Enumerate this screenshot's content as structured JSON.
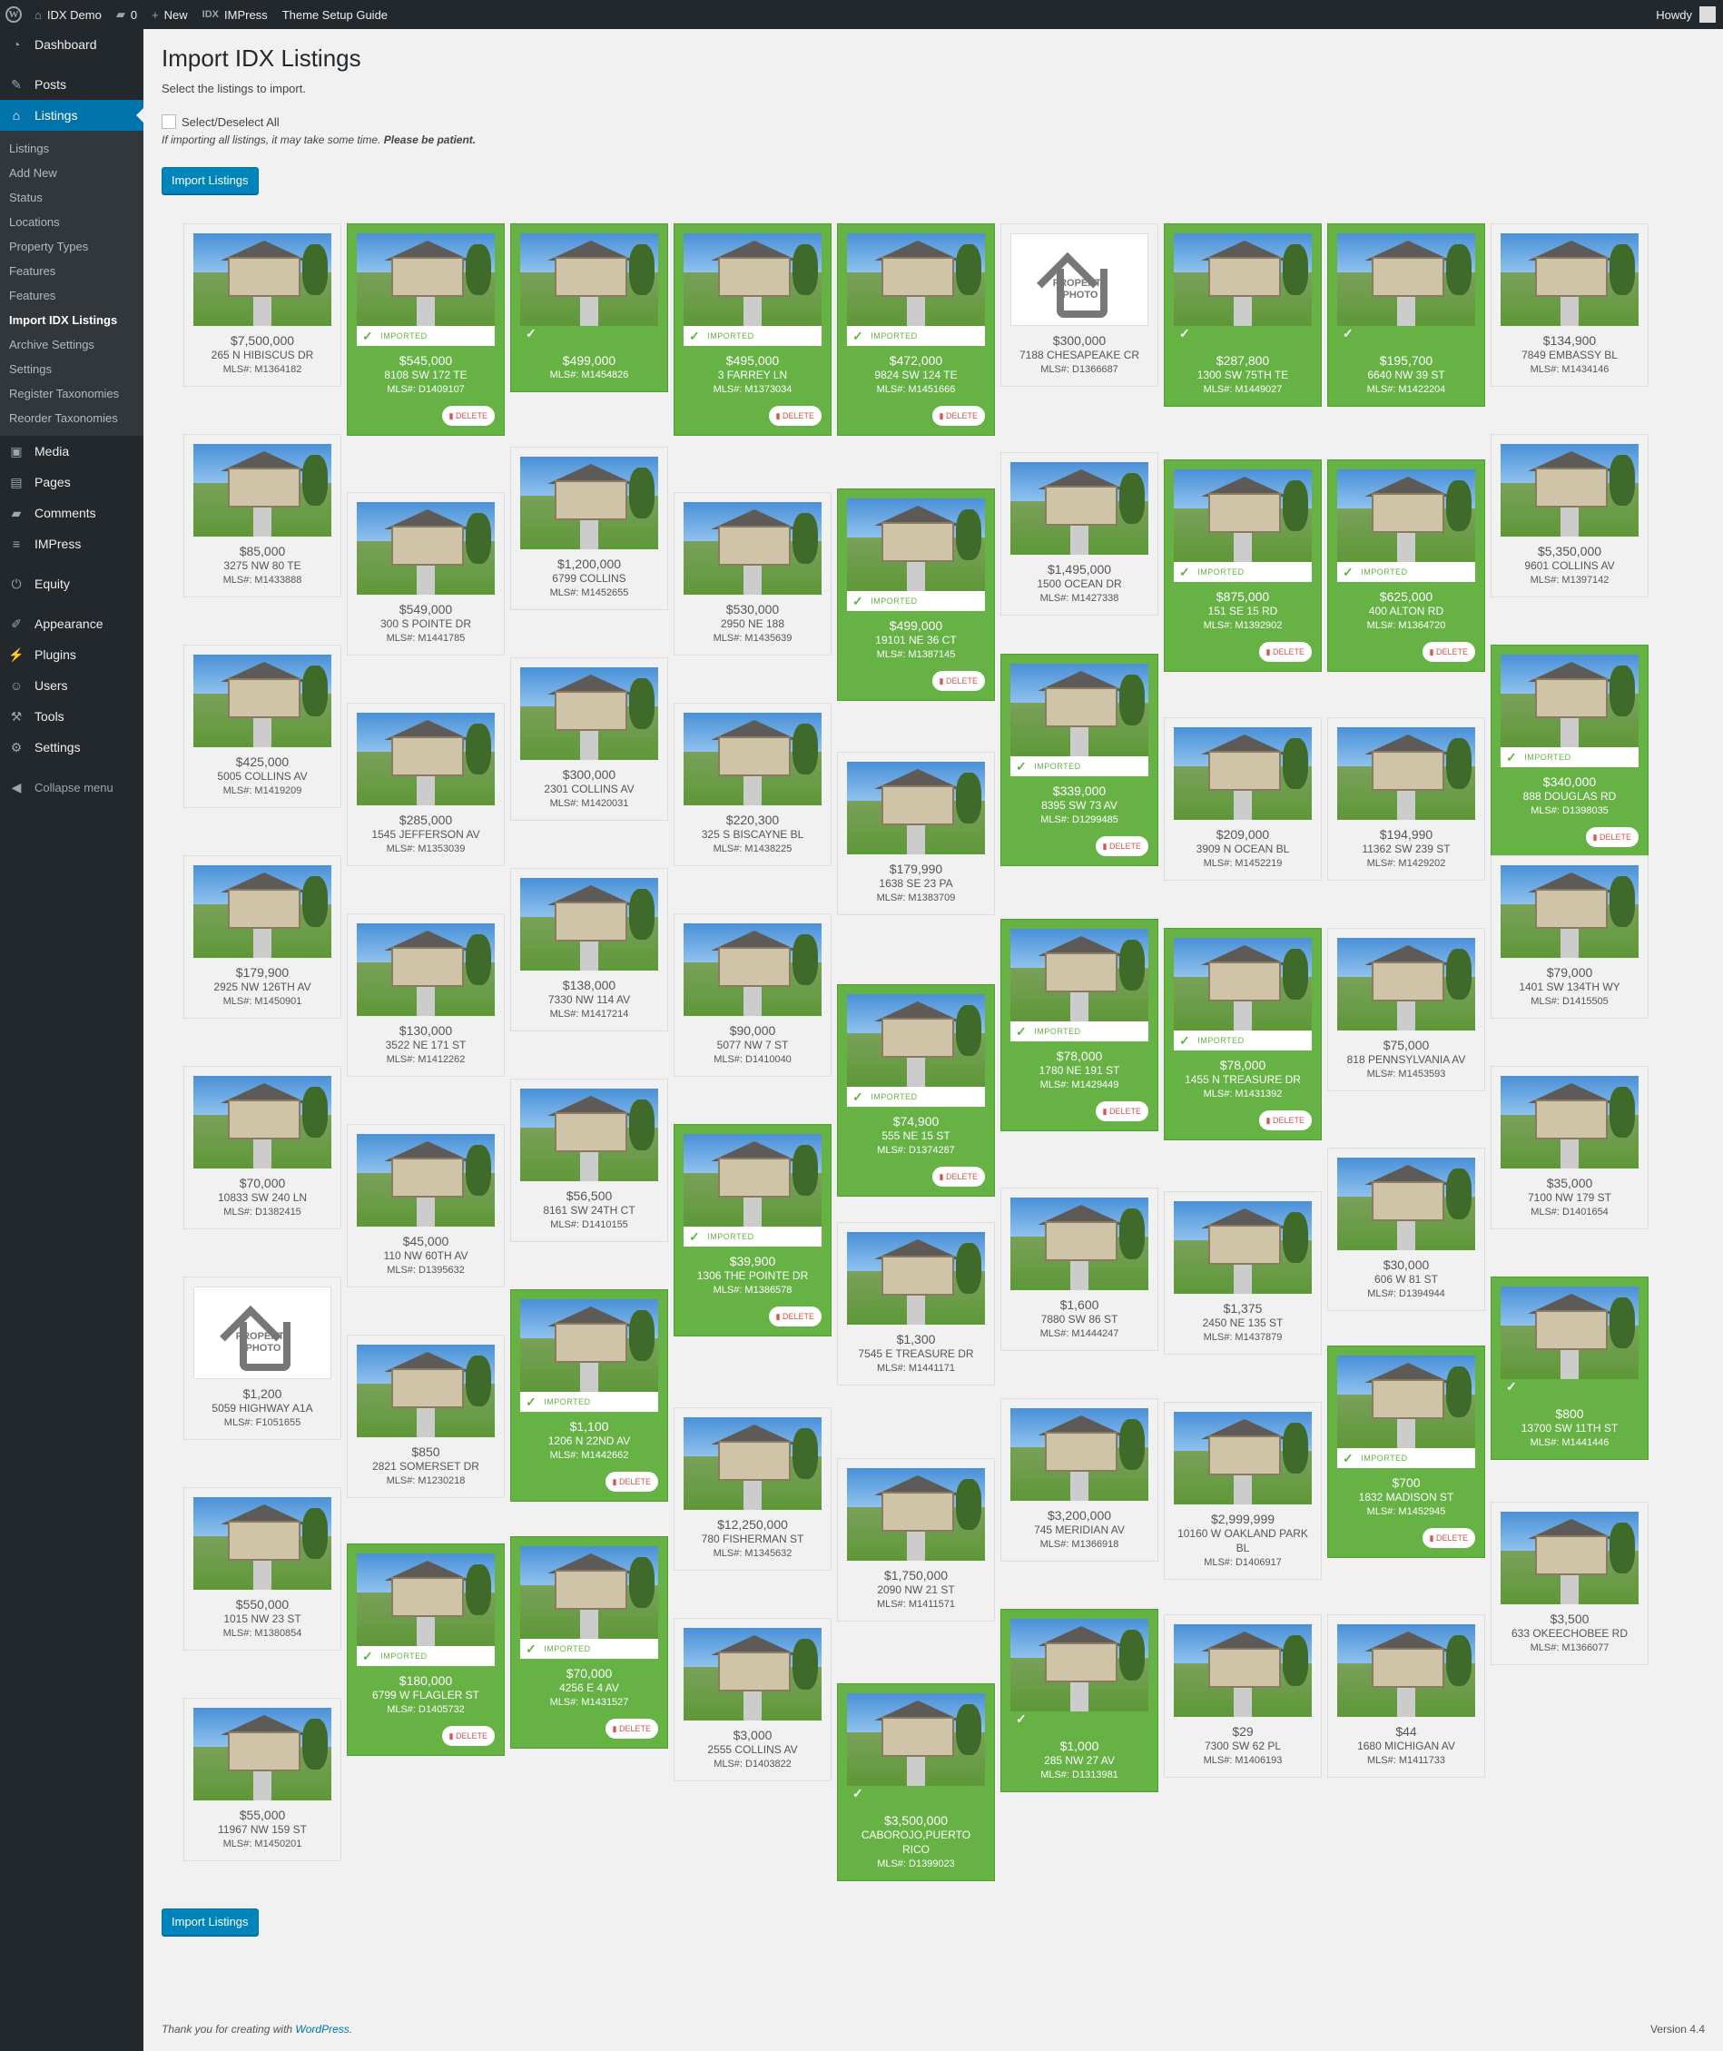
{
  "adminbar": {
    "site_name": "IDX Demo",
    "comments_count": "0",
    "new_label": "New",
    "impress_label": "IMPress",
    "guide_label": "Theme Setup Guide",
    "howdy": "Howdy"
  },
  "sidebar": {
    "items": [
      {
        "label": "Dashboard",
        "icon": "dashboard-icon"
      },
      {
        "label": "Posts",
        "icon": "pin-icon"
      },
      {
        "label": "Listings",
        "icon": "home-icon"
      },
      {
        "label": "Media",
        "icon": "media-icon"
      },
      {
        "label": "Pages",
        "icon": "page-icon"
      },
      {
        "label": "Comments",
        "icon": "comment-icon"
      },
      {
        "label": "IMPress",
        "icon": "idx-icon"
      },
      {
        "label": "Equity",
        "icon": "power-icon"
      },
      {
        "label": "Appearance",
        "icon": "brush-icon"
      },
      {
        "label": "Plugins",
        "icon": "plug-icon"
      },
      {
        "label": "Users",
        "icon": "user-icon"
      },
      {
        "label": "Tools",
        "icon": "wrench-icon"
      },
      {
        "label": "Settings",
        "icon": "settings-icon"
      },
      {
        "label": "Collapse menu",
        "icon": "collapse-icon"
      }
    ],
    "submenu": [
      "Listings",
      "Add New",
      "Status",
      "Locations",
      "Property Types",
      "Features",
      "Features",
      "Import IDX Listings",
      "Archive Settings",
      "Settings",
      "Register Taxonomies",
      "Reorder Taxonomies"
    ]
  },
  "page": {
    "title": "Import IDX Listings",
    "description": "Select the listings to import.",
    "select_all": "Select/Deselect All",
    "note": "If importing all listings, it may take some time.",
    "note_bold": "Please be patient.",
    "import_button": "Import Listings",
    "imported_label": "IMPORTED",
    "delete_label": "DELETE"
  },
  "listings": [
    [
      {
        "price": "$7,500,000",
        "addr": "265 N HIBISCUS DR",
        "mls": "MLS#: M1364182",
        "state": "none"
      },
      {
        "price": "$85,000",
        "addr": "3275 NW 80 TE",
        "mls": "MLS#: M1433888",
        "state": "none"
      },
      {
        "price": "$425,000",
        "addr": "5005 COLLINS AV",
        "mls": "MLS#: M1419209",
        "state": "none"
      },
      {
        "price": "$179,900",
        "addr": "2925 NW 126TH AV",
        "mls": "MLS#: M1450901",
        "state": "none"
      },
      {
        "price": "$70,000",
        "addr": "10833 SW 240 LN",
        "mls": "MLS#: D1382415",
        "state": "none"
      },
      {
        "price": "$1,200",
        "addr": "5059 HIGHWAY A1A",
        "mls": "MLS#: F1051655",
        "state": "none",
        "placeholder": true
      },
      {
        "price": "$550,000",
        "addr": "1015 NW 23 ST",
        "mls": "MLS#: M1380854",
        "state": "none"
      },
      {
        "price": "$55,000",
        "addr": "11967 NW 159 ST",
        "mls": "MLS#: M1450201",
        "state": "none"
      }
    ],
    [
      {
        "price": "$545,000",
        "addr": "8108 SW 172 TE",
        "mls": "MLS#: D1409107",
        "state": "imported"
      },
      {
        "price": "$549,000",
        "addr": "300 S POINTE DR",
        "mls": "MLS#: M1441785",
        "state": "none"
      },
      {
        "price": "$285,000",
        "addr": "1545 JEFFERSON AV",
        "mls": "MLS#: M1353039",
        "state": "none"
      },
      {
        "price": "$130,000",
        "addr": "3522 NE 171 ST",
        "mls": "MLS#: M1412262",
        "state": "none"
      },
      {
        "price": "$45,000",
        "addr": "110 NW 60TH AV",
        "mls": "MLS#: D1395632",
        "state": "none"
      },
      {
        "price": "$850",
        "addr": "2821 SOMERSET DR",
        "mls": "MLS#: M1230218",
        "state": "none"
      },
      {
        "price": "$180,000",
        "addr": "6799 W FLAGLER ST",
        "mls": "MLS#: D1405732",
        "state": "imported"
      }
    ],
    [
      {
        "price": "$499,000",
        "addr": "",
        "mls": "MLS#: M1454826",
        "state": "checked"
      },
      {
        "price": "$1,200,000",
        "addr": "6799 COLLINS",
        "mls": "MLS#: M1452655",
        "state": "none"
      },
      {
        "price": "$300,000",
        "addr": "2301 COLLINS AV",
        "mls": "MLS#: M1420031",
        "state": "none"
      },
      {
        "price": "$138,000",
        "addr": "7330 NW 114 AV",
        "mls": "MLS#: M1417214",
        "state": "none"
      },
      {
        "price": "$56,500",
        "addr": "8161 SW 24TH CT",
        "mls": "MLS#: D1410155",
        "state": "none"
      },
      {
        "price": "$1,100",
        "addr": "1206 N 22ND AV",
        "mls": "MLS#: M1442662",
        "state": "imported"
      },
      {
        "price": "$70,000",
        "addr": "4256 E 4 AV",
        "mls": "MLS#: M1431527",
        "state": "imported"
      }
    ],
    [
      {
        "price": "$495,000",
        "addr": "3 FARREY LN",
        "mls": "MLS#: M1373034",
        "state": "imported"
      },
      {
        "price": "$530,000",
        "addr": "2950 NE 188",
        "mls": "MLS#: M1435639",
        "state": "none"
      },
      {
        "price": "$220,300",
        "addr": "325 S BISCAYNE BL",
        "mls": "MLS#: M1438225",
        "state": "none"
      },
      {
        "price": "$90,000",
        "addr": "5077 NW 7 ST",
        "mls": "MLS#: D1410040",
        "state": "none"
      },
      {
        "price": "$39,900",
        "addr": "1306 THE POINTE DR",
        "mls": "MLS#: M1386578",
        "state": "imported"
      },
      {
        "price": "$12,250,000",
        "addr": "780 FISHERMAN ST",
        "mls": "MLS#: M1345632",
        "state": "none"
      },
      {
        "price": "$3,000",
        "addr": "2555 COLLINS AV",
        "mls": "MLS#: D1403822",
        "state": "none"
      }
    ],
    [
      {
        "price": "$472,000",
        "addr": "9824 SW 124 TE",
        "mls": "MLS#: M1451666",
        "state": "imported"
      },
      {
        "price": "$499,000",
        "addr": "19101 NE 36 CT",
        "mls": "MLS#: M1387145",
        "state": "imported"
      },
      {
        "price": "$179,990",
        "addr": "1638 SE 23 PA",
        "mls": "MLS#: M1383709",
        "state": "none"
      },
      {
        "price": "$74,900",
        "addr": "555 NE 15 ST",
        "mls": "MLS#: D1374287",
        "state": "imported"
      },
      {
        "price": "$1,300",
        "addr": "7545 E TREASURE DR",
        "mls": "MLS#: M1441171",
        "state": "none"
      },
      {
        "price": "$1,750,000",
        "addr": "2090 NW 21 ST",
        "mls": "MLS#: M1411571",
        "state": "none"
      },
      {
        "price": "$3,500,000",
        "addr": "CABOROJO,PUERTO RICO",
        "mls": "MLS#: D1399023",
        "state": "checked"
      }
    ],
    [
      {
        "price": "$300,000",
        "addr": "7188 CHESAPEAKE CR",
        "mls": "MLS#: D1366687",
        "state": "none",
        "placeholder": true
      },
      {
        "price": "$1,495,000",
        "addr": "1500 OCEAN DR",
        "mls": "MLS#: M1427338",
        "state": "none"
      },
      {
        "price": "$339,000",
        "addr": "8395 SW 73 AV",
        "mls": "MLS#: D1299485",
        "state": "imported"
      },
      {
        "price": "$78,000",
        "addr": "1780 NE 191 ST",
        "mls": "MLS#: M1429449",
        "state": "imported"
      },
      {
        "price": "$1,600",
        "addr": "7880 SW 86 ST",
        "mls": "MLS#: M1444247",
        "state": "none"
      },
      {
        "price": "$3,200,000",
        "addr": "745 MERIDIAN AV",
        "mls": "MLS#: M1366918",
        "state": "none"
      },
      {
        "price": "$1,000",
        "addr": "285 NW 27 AV",
        "mls": "MLS#: D1313981",
        "state": "checked"
      }
    ],
    [
      {
        "price": "$287,800",
        "addr": "1300 SW 75TH TE",
        "mls": "MLS#: M1449027",
        "state": "checked"
      },
      {
        "price": "$875,000",
        "addr": "151 SE 15 RD",
        "mls": "MLS#: M1392902",
        "state": "imported"
      },
      {
        "price": "$209,000",
        "addr": "3909 N OCEAN BL",
        "mls": "MLS#: M1452219",
        "state": "none"
      },
      {
        "price": "$78,000",
        "addr": "1455 N TREASURE DR",
        "mls": "MLS#: M1431392",
        "state": "imported"
      },
      {
        "price": "$1,375",
        "addr": "2450 NE 135 ST",
        "mls": "MLS#: M1437879",
        "state": "none"
      },
      {
        "price": "$2,999,999",
        "addr": "10160 W OAKLAND PARK BL",
        "mls": "MLS#: D1406917",
        "state": "none"
      },
      {
        "price": "$29",
        "addr": "7300 SW 62 PL",
        "mls": "MLS#: M1406193",
        "state": "none"
      }
    ],
    [
      {
        "price": "$195,700",
        "addr": "6640 NW 39 ST",
        "mls": "MLS#: M1422204",
        "state": "checked"
      },
      {
        "price": "$625,000",
        "addr": "400 ALTON RD",
        "mls": "MLS#: M1364720",
        "state": "imported"
      },
      {
        "price": "$194,990",
        "addr": "11362 SW 239 ST",
        "mls": "MLS#: M1429202",
        "state": "none"
      },
      {
        "price": "$75,000",
        "addr": "818 PENNSYLVANIA AV",
        "mls": "MLS#: M1453593",
        "state": "none"
      },
      {
        "price": "$30,000",
        "addr": "606 W 81 ST",
        "mls": "MLS#: D1394944",
        "state": "none"
      },
      {
        "price": "$700",
        "addr": "1832 MADISON ST",
        "mls": "MLS#: M1452945",
        "state": "imported"
      },
      {
        "price": "$44",
        "addr": "1680 MICHIGAN AV",
        "mls": "MLS#: M1411733",
        "state": "none"
      }
    ],
    [
      {
        "price": "$134,900",
        "addr": "7849 EMBASSY BL",
        "mls": "MLS#: M1434146",
        "state": "none"
      },
      {
        "price": "$5,350,000",
        "addr": "9601 COLLINS AV",
        "mls": "MLS#: M1397142",
        "state": "none"
      },
      {
        "price": "$340,000",
        "addr": "888 DOUGLAS RD",
        "mls": "MLS#: D1398035",
        "state": "imported"
      },
      {
        "price": "$79,000",
        "addr": "1401 SW 134TH WY",
        "mls": "MLS#: D1415505",
        "state": "none"
      },
      {
        "price": "$35,000",
        "addr": "7100 NW 179 ST",
        "mls": "MLS#: D1401654",
        "state": "none"
      },
      {
        "price": "$800",
        "addr": "13700 SW 11TH ST",
        "mls": "MLS#: M1441446",
        "state": "checked"
      },
      {
        "price": "$3,500",
        "addr": "633 OKEECHOBEE RD",
        "mls": "MLS#: M1366077",
        "state": "none"
      }
    ]
  ],
  "footer": {
    "text": "Thank you for creating with",
    "link": "WordPress",
    "version": "Version 4.4"
  },
  "colors": {
    "accent": "#0073aa",
    "imported": "#66b245",
    "sidebar": "#23282d"
  }
}
